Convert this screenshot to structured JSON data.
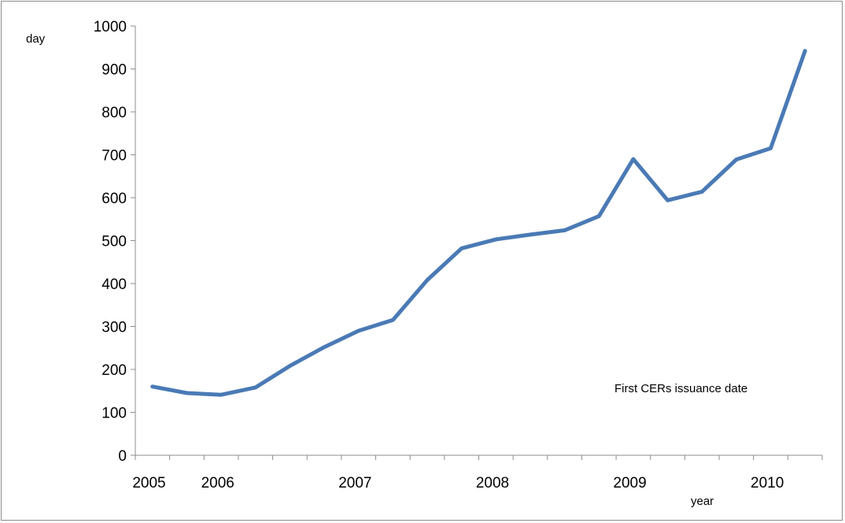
{
  "chart_data": {
    "type": "line",
    "title": "",
    "ylabel": "day",
    "xlabel": "year",
    "annotation": "First CERs issuance date",
    "ylim": [
      0,
      1000
    ],
    "yticks": [
      0,
      100,
      200,
      300,
      400,
      500,
      600,
      700,
      800,
      900,
      1000
    ],
    "xlim": [
      0,
      20
    ],
    "x_tick_labels": [
      {
        "label": "2005",
        "x": 0.4
      },
      {
        "label": "2006",
        "x": 2.4
      },
      {
        "label": "2007",
        "x": 6.4
      },
      {
        "label": "2008",
        "x": 10.4
      },
      {
        "label": "2009",
        "x": 14.4
      },
      {
        "label": "2010",
        "x": 18.4
      }
    ],
    "grid": false,
    "legend": "none",
    "series": [
      {
        "color": "#4a7ab5",
        "x": [
          0.5,
          1.5,
          2.5,
          3.5,
          4.5,
          5.5,
          6.5,
          7.5,
          8.5,
          9.5,
          10.5,
          11.5,
          12.5,
          13.5,
          14.5,
          15.5,
          16.5,
          17.5,
          18.5,
          19.5
        ],
        "values": [
          160,
          145,
          141,
          158,
          208,
          252,
          290,
          315,
          408,
          482,
          503,
          514,
          524,
          557,
          690,
          594,
          614,
          689,
          715,
          942
        ]
      }
    ]
  }
}
